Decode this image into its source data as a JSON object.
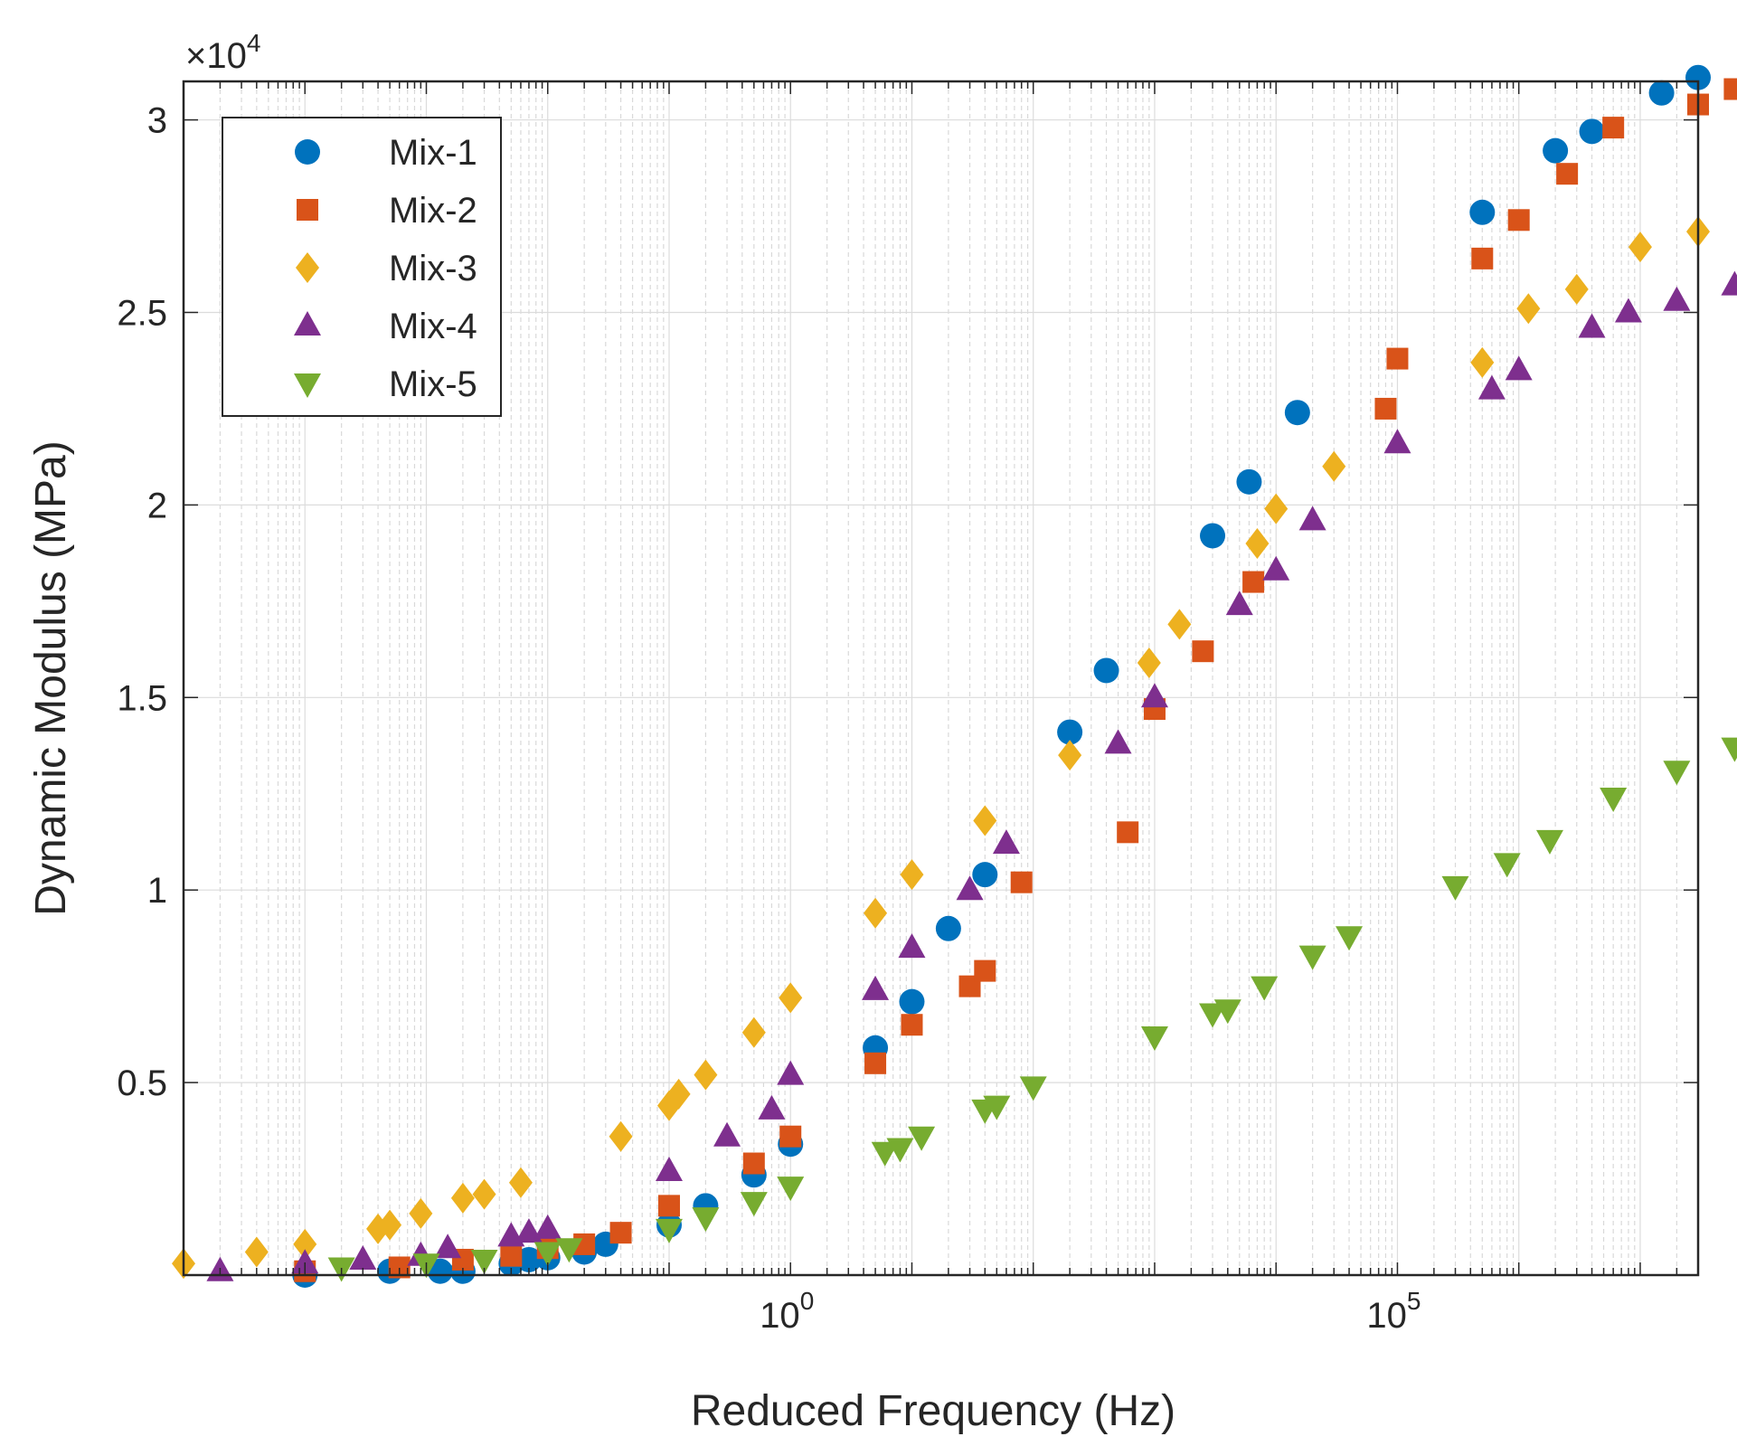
{
  "chart_data": {
    "type": "scatter",
    "title": "",
    "xlabel": "Reduced Frequency (Hz)",
    "ylabel": "Dynamic Modulus (MPa)",
    "xscale": "log",
    "xlim": [
      1e-05,
      30000000.0
    ],
    "ylim": [
      0,
      31000
    ],
    "y_multiplier_label": "×10",
    "y_multiplier_exp": "4",
    "x_tick_labels": [
      {
        "base": "10",
        "exp": "0",
        "value": 1
      },
      {
        "base": "10",
        "exp": "5",
        "value": 100000
      }
    ],
    "y_ticks": [
      {
        "value": 5000,
        "label": "0.5"
      },
      {
        "value": 10000,
        "label": "1"
      },
      {
        "value": 15000,
        "label": "1.5"
      },
      {
        "value": 20000,
        "label": "2"
      },
      {
        "value": 25000,
        "label": "2.5"
      },
      {
        "value": 30000,
        "label": "3"
      }
    ],
    "grid": true,
    "legend_position": "top-left",
    "series": [
      {
        "name": "Mix-1",
        "marker": "circle",
        "color": "#0072BD",
        "points": [
          [
            0.0001,
            0
          ],
          [
            0.0005,
            100
          ],
          [
            0.0013,
            100
          ],
          [
            0.002,
            100
          ],
          [
            0.005,
            300
          ],
          [
            0.007,
            400
          ],
          [
            0.01,
            450
          ],
          [
            0.02,
            600
          ],
          [
            0.03,
            800
          ],
          [
            0.1,
            1300
          ],
          [
            0.2,
            1800
          ],
          [
            0.5,
            2600
          ],
          [
            1,
            3400
          ],
          [
            5,
            5900
          ],
          [
            10,
            7100
          ],
          [
            20,
            9000
          ],
          [
            40,
            10400
          ],
          [
            200,
            14100
          ],
          [
            400,
            15700
          ],
          [
            3000,
            19200
          ],
          [
            6000,
            20600
          ],
          [
            15000,
            22400
          ],
          [
            500000,
            27600
          ],
          [
            2000000,
            29200
          ],
          [
            4000000,
            29700
          ],
          [
            15000000,
            30700
          ],
          [
            30000000,
            31100
          ]
        ]
      },
      {
        "name": "Mix-2",
        "marker": "square",
        "color": "#D95319",
        "points": [
          [
            0.0001,
            100
          ],
          [
            0.0006,
            200
          ],
          [
            0.002,
            400
          ],
          [
            0.005,
            500
          ],
          [
            0.01,
            700
          ],
          [
            0.02,
            800
          ],
          [
            0.04,
            1100
          ],
          [
            0.1,
            1800
          ],
          [
            0.5,
            2900
          ],
          [
            1,
            3600
          ],
          [
            5,
            5500
          ],
          [
            10,
            6500
          ],
          [
            30,
            7500
          ],
          [
            40,
            7900
          ],
          [
            80,
            10200
          ],
          [
            600,
            11500
          ],
          [
            1000,
            14700
          ],
          [
            2500,
            16200
          ],
          [
            6500,
            18000
          ],
          [
            80000,
            22500
          ],
          [
            100000,
            23800
          ],
          [
            500000,
            26400
          ],
          [
            1000000,
            27400
          ],
          [
            2500000,
            28600
          ],
          [
            6000000,
            29800
          ],
          [
            30000000,
            30400
          ],
          [
            60000000,
            30800
          ]
        ]
      },
      {
        "name": "Mix-3",
        "marker": "diamond",
        "color": "#EDB120",
        "points": [
          [
            1e-05,
            300
          ],
          [
            4e-05,
            600
          ],
          [
            0.0001,
            800
          ],
          [
            0.0004,
            1200
          ],
          [
            0.0005,
            1300
          ],
          [
            0.0009,
            1600
          ],
          [
            0.002,
            2000
          ],
          [
            0.003,
            2100
          ],
          [
            0.006,
            2400
          ],
          [
            0.04,
            3600
          ],
          [
            0.1,
            4400
          ],
          [
            0.12,
            4700
          ],
          [
            0.2,
            5200
          ],
          [
            0.5,
            6300
          ],
          [
            1,
            7200
          ],
          [
            5,
            9400
          ],
          [
            10,
            10400
          ],
          [
            40,
            11800
          ],
          [
            200,
            13500
          ],
          [
            900,
            15900
          ],
          [
            1600,
            16900
          ],
          [
            7000,
            19000
          ],
          [
            10000,
            19900
          ],
          [
            30000,
            21000
          ],
          [
            500000,
            23700
          ],
          [
            1200000,
            25100
          ],
          [
            3000000,
            25600
          ],
          [
            10000000,
            26700
          ],
          [
            30000000,
            27100
          ]
        ]
      },
      {
        "name": "Mix-4",
        "marker": "triangle-up",
        "color": "#7E2F8E",
        "points": [
          [
            2e-05,
            100
          ],
          [
            0.0001,
            300
          ],
          [
            0.0003,
            400
          ],
          [
            0.0009,
            500
          ],
          [
            0.0015,
            700
          ],
          [
            0.005,
            1000
          ],
          [
            0.007,
            1100
          ],
          [
            0.01,
            1200
          ],
          [
            0.1,
            2700
          ],
          [
            0.3,
            3600
          ],
          [
            0.7,
            4300
          ],
          [
            1,
            5200
          ],
          [
            5,
            7400
          ],
          [
            10,
            8500
          ],
          [
            30,
            10000
          ],
          [
            60,
            11200
          ],
          [
            500,
            13800
          ],
          [
            1000,
            15000
          ],
          [
            5000,
            17400
          ],
          [
            10000,
            18300
          ],
          [
            20000,
            19600
          ],
          [
            100000,
            21600
          ],
          [
            600000,
            23000
          ],
          [
            1000000,
            23500
          ],
          [
            4000000,
            24600
          ],
          [
            8000000,
            25000
          ],
          [
            20000000,
            25300
          ],
          [
            60000000,
            25700
          ]
        ]
      },
      {
        "name": "Mix-5",
        "marker": "triangle-down",
        "color": "#77AC30",
        "points": [
          [
            0.0002,
            200
          ],
          [
            0.001,
            300
          ],
          [
            0.003,
            400
          ],
          [
            0.01,
            600
          ],
          [
            0.015,
            700
          ],
          [
            0.1,
            1200
          ],
          [
            0.2,
            1500
          ],
          [
            0.5,
            1900
          ],
          [
            1,
            2300
          ],
          [
            6,
            3200
          ],
          [
            8,
            3300
          ],
          [
            12,
            3600
          ],
          [
            40,
            4300
          ],
          [
            50,
            4400
          ],
          [
            100,
            4900
          ],
          [
            1000,
            6200
          ],
          [
            3000,
            6800
          ],
          [
            4000,
            6900
          ],
          [
            8000,
            7500
          ],
          [
            20000,
            8300
          ],
          [
            40000,
            8800
          ],
          [
            300000,
            10100
          ],
          [
            800000,
            10700
          ],
          [
            1800000,
            11300
          ],
          [
            6000000,
            12400
          ],
          [
            20000000,
            13100
          ],
          [
            60000000,
            13700
          ]
        ]
      }
    ]
  }
}
